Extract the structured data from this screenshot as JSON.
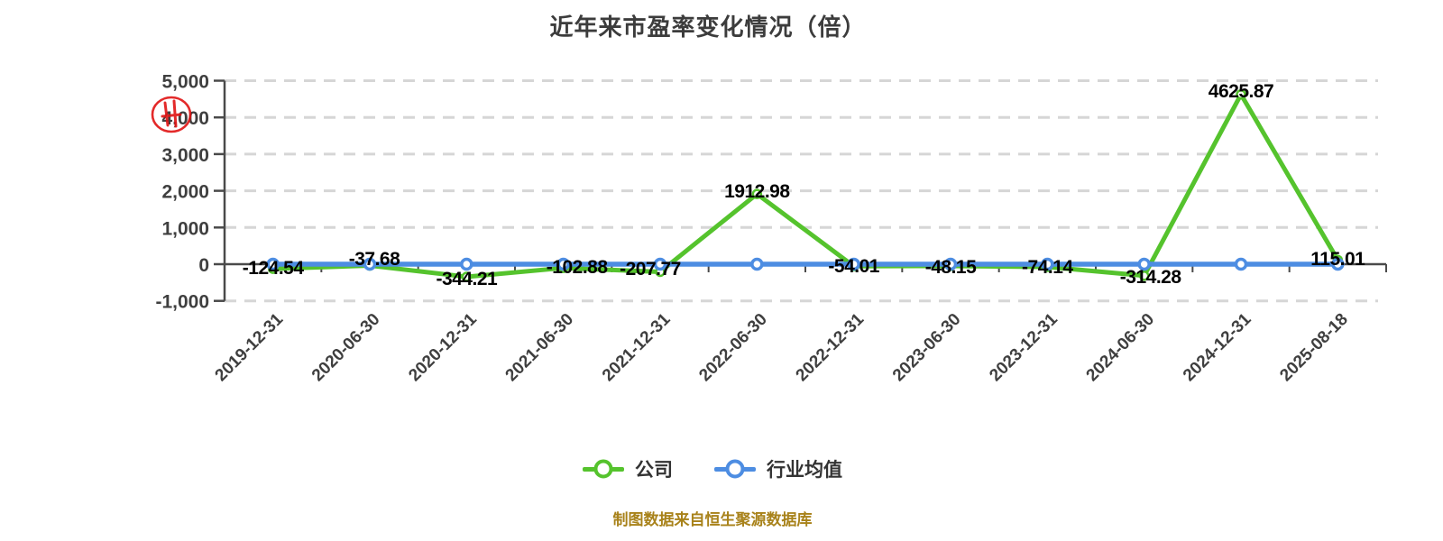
{
  "title": "近年来市盈率变化情况（倍）",
  "footer": "制图数据来自恒生聚源数据库",
  "annotation": {
    "name": "red-stamp-over-4000",
    "color": "#e01414"
  },
  "colors": {
    "company": "#55c32d",
    "industry": "#4d8de2",
    "grid": "#d6d6d6",
    "axis": "#4a4a4a",
    "tick_label": "#3f3f3f",
    "data_label": "#000000",
    "title": "#3c3c3c",
    "footer": "#a8821a"
  },
  "legend": [
    {
      "label": "公司",
      "color": "#55c32d"
    },
    {
      "label": "行业均值",
      "color": "#4d8de2"
    }
  ],
  "chart_data": {
    "type": "line",
    "title": "近年来市盈率变化情况（倍）",
    "categories": [
      "2019-12-31",
      "2020-06-30",
      "2020-12-31",
      "2021-06-30",
      "2021-12-31",
      "2022-06-30",
      "2022-12-31",
      "2023-06-30",
      "2023-12-31",
      "2024-06-30",
      "2024-12-31",
      "2025-08-18"
    ],
    "series": [
      {
        "name": "公司",
        "color": "#55c32d",
        "values": [
          -124.54,
          -37.68,
          -344.21,
          -102.88,
          -207.77,
          1912.98,
          -54.01,
          -48.15,
          -74.14,
          -314.28,
          4625.87,
          115.01
        ],
        "labels_shown": true
      },
      {
        "name": "行业均值",
        "color": "#4d8de2",
        "values": [
          0,
          0,
          0,
          0,
          0,
          0,
          0,
          0,
          0,
          0,
          0,
          0
        ],
        "labels_shown": false
      }
    ],
    "ylim": [
      -1000,
      5000
    ],
    "ytick_step": 1000,
    "yticks": [
      "5,000",
      "4,000",
      "3,000",
      "2,000",
      "1,000",
      "0",
      "-1,000"
    ],
    "grid": "horizontal-dashed",
    "legend_position": "bottom"
  }
}
